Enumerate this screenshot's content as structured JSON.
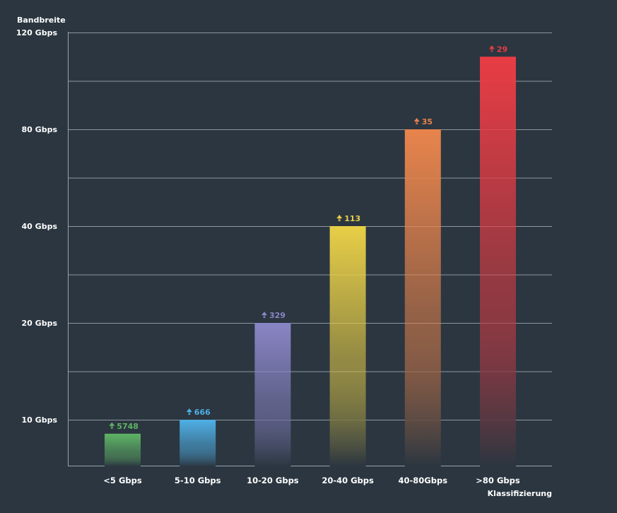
{
  "chart_data": {
    "type": "bar",
    "ylabel": "Bandbreite",
    "xlabel": "Klassifizierung",
    "y_ticks": [
      "10 Gbps",
      "20 Gbps",
      "40 Gbps",
      "80 Gbps",
      "120 Gbps"
    ],
    "y_scale": "categorical-steps (ticks evenly spaced, one intermediate gridline between each)",
    "grid": true,
    "categories": [
      "<5 Gbps",
      "5-10 Gbps",
      "10-20 Gbps",
      "20-40 Gbps",
      "40-80Gbps",
      ">80 Gbps"
    ],
    "bar_heights_gbps": [
      7,
      10,
      20,
      40,
      80,
      110
    ],
    "series": [
      {
        "values": [
          5748,
          666,
          329,
          113,
          35,
          29
        ],
        "value_labels": [
          "5748",
          "666",
          "329",
          "113",
          "35",
          "29"
        ]
      }
    ],
    "colors": [
      "#5fb366",
      "#4fb0e6",
      "#8a85c6",
      "#e8cf47",
      "#e8844c",
      "#e83c44"
    ],
    "label_icon": "double-up-arrow-icon"
  }
}
